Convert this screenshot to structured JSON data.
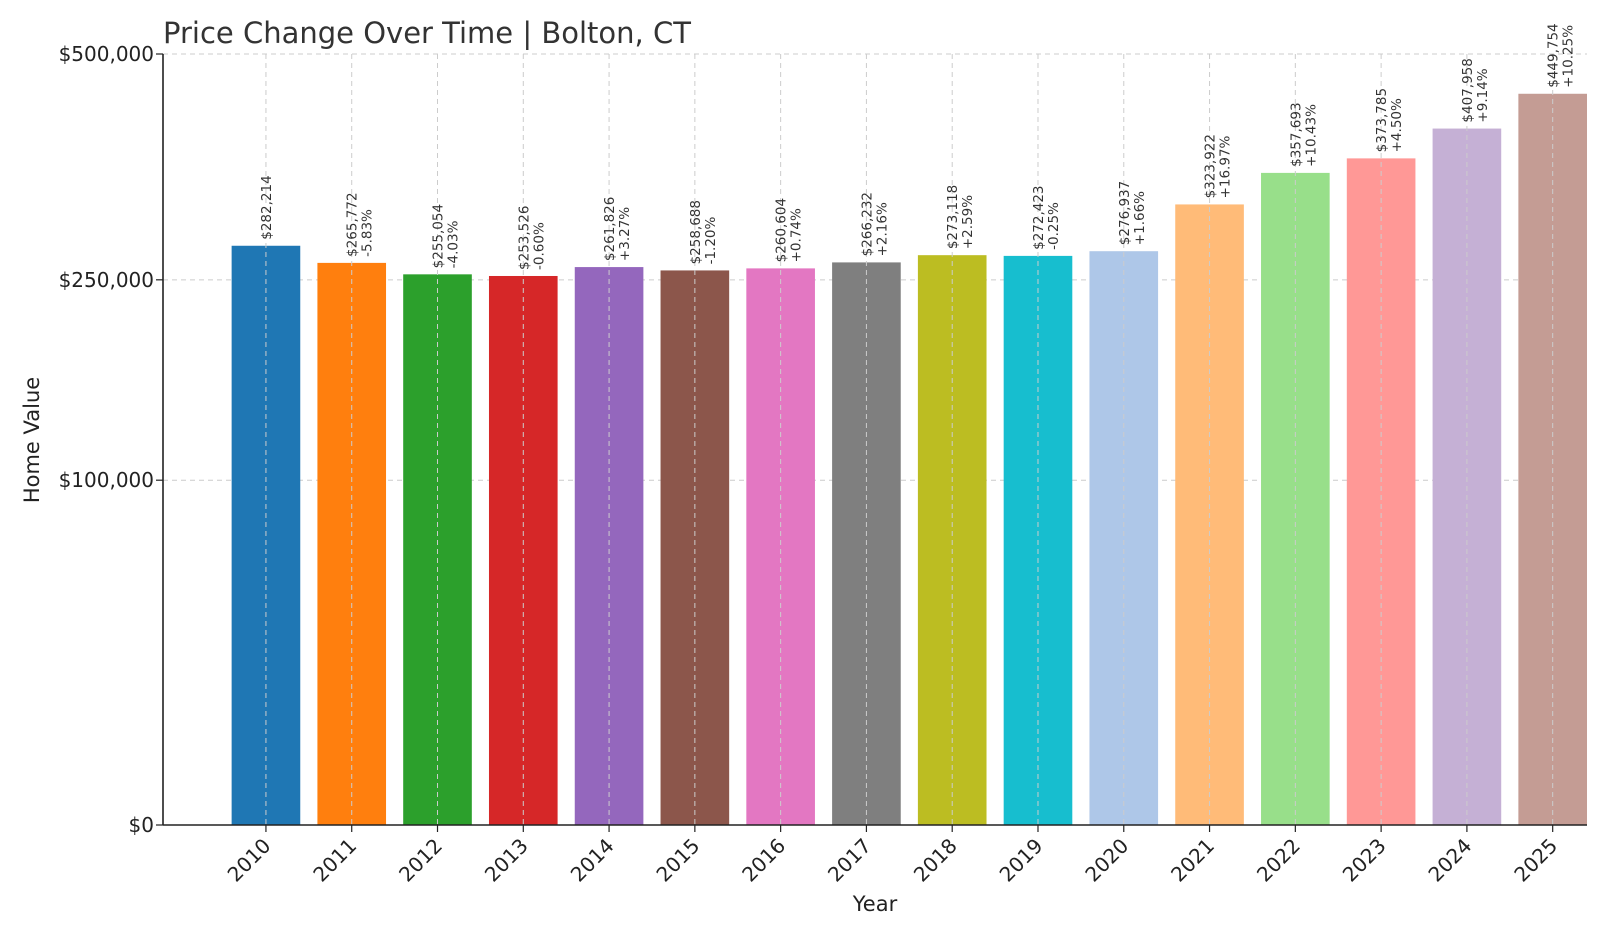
{
  "chart_data": {
    "type": "bar",
    "title": "Price Change Over Time | Bolton, CT",
    "xlabel": "Year",
    "ylabel": "Home Value",
    "categories": [
      "2010",
      "2011",
      "2012",
      "2013",
      "2014",
      "2015",
      "2016",
      "2017",
      "2018",
      "2019",
      "2020",
      "2021",
      "2022",
      "2023",
      "2024",
      "2025"
    ],
    "values": [
      282214,
      265772,
      255054,
      253526,
      261826,
      258688,
      260604,
      266232,
      273118,
      272423,
      276937,
      323922,
      357693,
      373785,
      407958,
      449754
    ],
    "value_labels": [
      "$282,214",
      "$265,772",
      "$255,054",
      "$253,526",
      "$261,826",
      "$258,688",
      "$260,604",
      "$266,232",
      "$273,118",
      "$272,423",
      "$276,937",
      "$323,922",
      "$357,693",
      "$373,785",
      "$407,958",
      "$449,754"
    ],
    "change_labels": [
      "",
      "-5.83%",
      "-4.03%",
      "-0.60%",
      "+3.27%",
      "-1.20%",
      "+0.74%",
      "+2.16%",
      "+2.59%",
      "-0.25%",
      "+1.66%",
      "+16.97%",
      "+10.43%",
      "+4.50%",
      "+9.14%",
      "+10.25%"
    ],
    "colors": [
      "#1f77b4",
      "#ff7f0e",
      "#2ca02c",
      "#d62728",
      "#9467bd",
      "#8c564b",
      "#e377c2",
      "#7f7f7f",
      "#bcbd22",
      "#17becf",
      "#aec7e8",
      "#ffbb78",
      "#98df8a",
      "#ff9896",
      "#c5b0d5",
      "#c49c94"
    ],
    "y_scale": "sqrt",
    "ylim": [
      0,
      500000
    ],
    "yticks": [
      0,
      100000,
      250000,
      500000
    ],
    "ytick_labels": [
      "$0",
      "$100,000",
      "$250,000",
      "$500,000"
    ],
    "grid": true,
    "axis_color": "#222222",
    "grid_color": "#cccccc"
  }
}
